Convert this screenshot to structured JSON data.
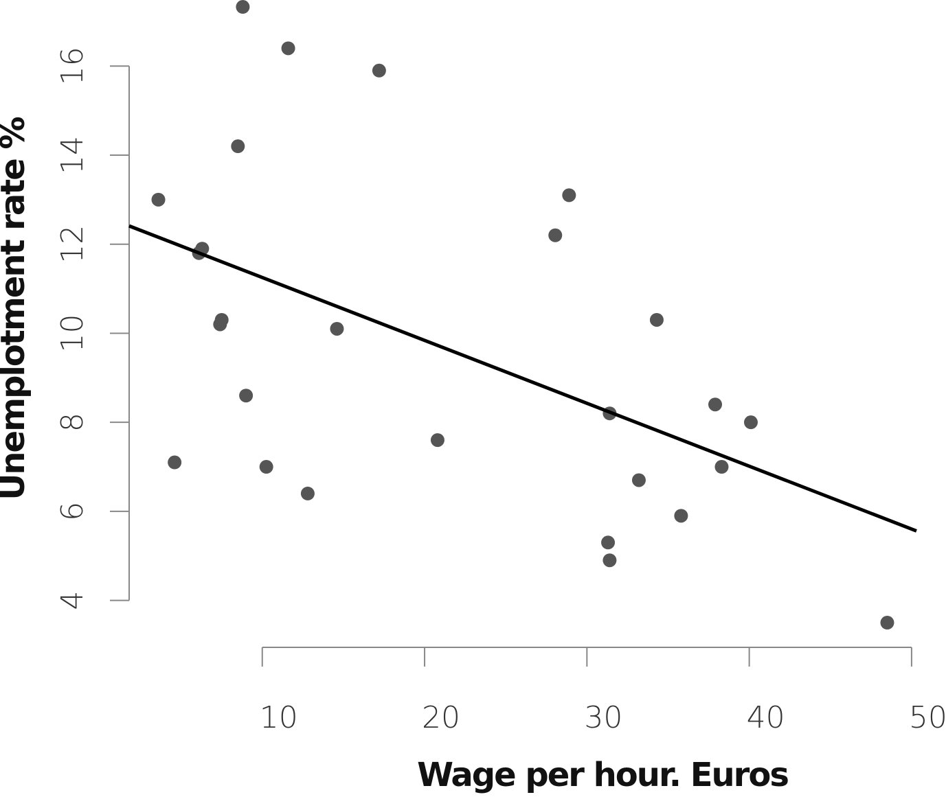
{
  "chart_data": {
    "type": "scatter",
    "x_label": "Wage per hour. Euros",
    "y_label": "Unemplotment rate %",
    "color": "#555555",
    "x": [
      8.8,
      11.6,
      17.2,
      8.5,
      3.6,
      28.9,
      28.05,
      6.3,
      6.1,
      7.5,
      7.4,
      14.6,
      34.3,
      9.0,
      20.8,
      31.4,
      37.9,
      40.1,
      4.6,
      10.25,
      38.3,
      12.8,
      33.2,
      35.8,
      31.3,
      31.4,
      48.5
    ],
    "values": [
      17.33,
      16.4,
      15.9,
      14.2,
      13.0,
      13.1,
      12.2,
      11.9,
      11.8,
      10.3,
      10.2,
      10.1,
      10.3,
      8.6,
      7.6,
      8.2,
      8.4,
      8.0,
      7.1,
      7.0,
      7.0,
      6.4,
      6.7,
      5.9,
      5.3,
      4.9,
      3.5
    ],
    "fit": {
      "color": "#000000",
      "x": [
        1.8,
        50.3
      ],
      "values": [
        12.41,
        5.56
      ]
    },
    "xlim": [
      1.8,
      50.3
    ],
    "xticks": [
      10,
      20,
      30,
      40,
      50
    ],
    "ylim": [
      3.3,
      17.5
    ],
    "yticks": [
      4,
      6,
      8,
      10,
      12,
      14,
      16
    ],
    "grid": false
  }
}
